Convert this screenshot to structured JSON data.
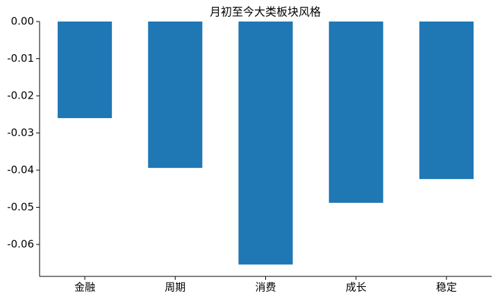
{
  "chart_data": {
    "type": "bar",
    "title": "月初至今大类板块风格",
    "categories": [
      "金融",
      "周期",
      "消费",
      "成长",
      "稳定"
    ],
    "values": [
      -0.026,
      -0.0394,
      -0.0654,
      -0.0488,
      -0.0424
    ],
    "color": "#1f77b4",
    "ylim": [
      -0.0686,
      0
    ],
    "yticks": [
      {
        "value": 0,
        "label": "0.00"
      },
      {
        "value": -0.01,
        "label": "-0.01"
      },
      {
        "value": -0.02,
        "label": "-0.02"
      },
      {
        "value": -0.03,
        "label": "-0.03"
      },
      {
        "value": -0.04,
        "label": "-0.04"
      },
      {
        "value": -0.05,
        "label": "-0.05"
      },
      {
        "value": -0.06,
        "label": "-0.06"
      }
    ],
    "grid": false
  }
}
